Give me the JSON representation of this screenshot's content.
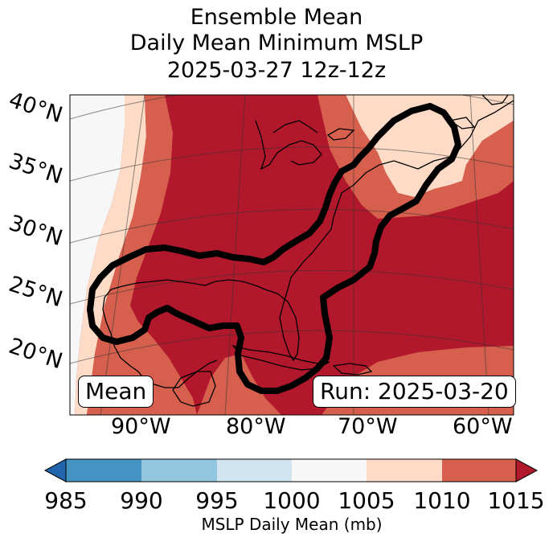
{
  "title": {
    "line1": "Ensemble Mean",
    "line2": "Daily Mean Minimum MSLP",
    "line3": "2025-03-27 12z-12z"
  },
  "map": {
    "lat_labels": [
      "40°N",
      "35°N",
      "30°N",
      "25°N",
      "20°N"
    ],
    "lon_labels": [
      "90°W",
      "80°W",
      "70°W",
      "60°W"
    ],
    "badge_left": "Mean",
    "badge_right": "Run: 2025-03-20",
    "contour_color": "#000000"
  },
  "colorbar": {
    "ticks": [
      "985",
      "990",
      "995",
      "1000",
      "1005",
      "1010",
      "1015"
    ],
    "label": "MSLP Daily Mean (mb)",
    "colors": {
      "under": "#2166ac",
      "985-990": "#4393c3",
      "990-995": "#92c5de",
      "995-1000": "#d1e5f0",
      "1000-1005": "#f7f7f7",
      "1005-1010": "#fddbc7",
      "1010-1015": "#d6604d",
      "over": "#b2182b"
    }
  }
}
